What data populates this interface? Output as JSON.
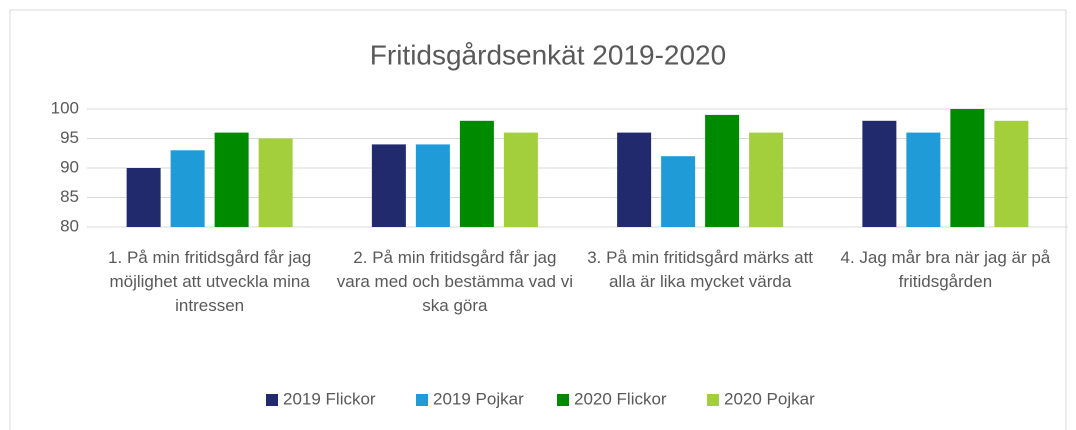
{
  "chart_data": {
    "type": "bar",
    "title": "Fritidsgårdsenkät 2019-2020",
    "categories": [
      "1. På min fritidsgård får jag möjlighet att utveckla mina intressen",
      "2. På min fritidsgård får jag vara med och bestämma vad vi ska göra",
      "3. På min fritidsgård märks att alla är lika mycket värda",
      "4. Jag mår bra när jag är på fritidsgården"
    ],
    "series": [
      {
        "name": "2019 Flickor",
        "color": "#222a6e",
        "values": [
          90,
          94,
          96,
          98
        ]
      },
      {
        "name": "2019 Pojkar",
        "color": "#1f9bd7",
        "values": [
          93,
          94,
          92,
          96
        ]
      },
      {
        "name": "2020 Flickor",
        "color": "#008a00",
        "values": [
          96,
          98,
          99,
          100
        ]
      },
      {
        "name": "2020 Pojkar",
        "color": "#a3cf3c",
        "values": [
          95,
          96,
          96,
          98
        ]
      }
    ],
    "ylim": [
      80,
      100
    ],
    "yticks": [
      80,
      85,
      90,
      95,
      100
    ],
    "grid": true,
    "legend": "bottom"
  }
}
